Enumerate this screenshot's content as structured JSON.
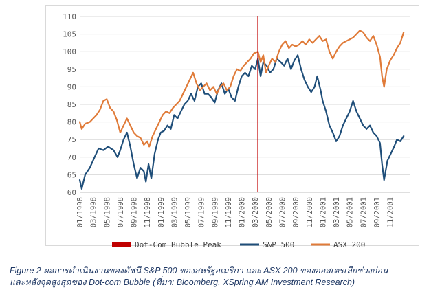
{
  "chart_data": {
    "type": "line",
    "title": "",
    "xlabel": "",
    "ylabel": "",
    "ylim": [
      60,
      110
    ],
    "yticks": [
      60,
      65,
      70,
      75,
      80,
      85,
      90,
      95,
      100,
      105,
      110
    ],
    "x_start": "01/1998",
    "x_end": "02/2002",
    "xticks": [
      "01/1998",
      "03/1998",
      "05/1998",
      "07/1998",
      "09/1998",
      "11/1998",
      "01/1999",
      "03/1999",
      "05/1999",
      "07/1999",
      "09/1999",
      "11/1999",
      "01/2000",
      "03/2000",
      "05/2000",
      "07/2000",
      "09/2000",
      "11/2000",
      "01/2001",
      "03/2001",
      "05/2001",
      "07/2001",
      "09/2001",
      "11/2001"
    ],
    "grid": "horizontal",
    "legend_position": "bottom",
    "annotations": [
      {
        "name": "Dot-Com Bubble Peak",
        "type": "vline",
        "x": "03/2000",
        "month_index": 26.4,
        "color": "#c00000"
      }
    ],
    "series": [
      {
        "name": "S&P 500",
        "color": "#1f4e79",
        "points": [
          [
            0,
            63.5
          ],
          [
            0.3,
            61
          ],
          [
            0.8,
            65
          ],
          [
            1.5,
            67
          ],
          [
            2.2,
            70
          ],
          [
            2.8,
            72.5
          ],
          [
            3.5,
            72
          ],
          [
            4.2,
            73
          ],
          [
            5,
            72
          ],
          [
            5.6,
            70
          ],
          [
            6,
            72
          ],
          [
            6.5,
            75
          ],
          [
            7,
            77
          ],
          [
            7.5,
            73
          ],
          [
            8,
            68
          ],
          [
            8.5,
            64
          ],
          [
            9,
            67
          ],
          [
            9.5,
            66
          ],
          [
            9.8,
            63
          ],
          [
            10.2,
            68
          ],
          [
            10.6,
            64
          ],
          [
            11.1,
            71
          ],
          [
            11.6,
            75
          ],
          [
            12,
            77
          ],
          [
            12.5,
            77.5
          ],
          [
            13,
            79
          ],
          [
            13.5,
            78
          ],
          [
            14,
            82
          ],
          [
            14.5,
            81
          ],
          [
            15,
            83
          ],
          [
            15.5,
            85
          ],
          [
            16,
            86
          ],
          [
            16.5,
            88
          ],
          [
            17,
            86
          ],
          [
            17.5,
            90
          ],
          [
            18,
            91
          ],
          [
            18.5,
            88
          ],
          [
            19,
            88
          ],
          [
            19.5,
            87
          ],
          [
            20,
            85.5
          ],
          [
            20.5,
            89
          ],
          [
            21,
            91
          ],
          [
            21.5,
            88
          ],
          [
            22,
            89.5
          ],
          [
            22.5,
            87
          ],
          [
            23,
            86
          ],
          [
            23.5,
            90
          ],
          [
            24,
            93
          ],
          [
            24.5,
            94
          ],
          [
            25,
            93
          ],
          [
            25.5,
            96
          ],
          [
            26,
            95
          ],
          [
            26.4,
            98
          ],
          [
            26.8,
            93
          ],
          [
            27.2,
            97
          ],
          [
            27.7,
            96
          ],
          [
            28.2,
            94
          ],
          [
            28.7,
            95
          ],
          [
            29.2,
            98
          ],
          [
            29.8,
            97
          ],
          [
            30.3,
            96
          ],
          [
            30.8,
            98
          ],
          [
            31.3,
            95
          ],
          [
            31.8,
            97.5
          ],
          [
            32.3,
            99
          ],
          [
            32.8,
            95
          ],
          [
            33.3,
            92
          ],
          [
            33.8,
            90
          ],
          [
            34.3,
            88.5
          ],
          [
            34.8,
            90
          ],
          [
            35.2,
            93
          ],
          [
            35.7,
            89
          ],
          [
            36,
            86
          ],
          [
            36.5,
            83
          ],
          [
            37,
            79
          ],
          [
            37.5,
            77
          ],
          [
            38,
            74.5
          ],
          [
            38.5,
            76
          ],
          [
            39,
            79
          ],
          [
            39.5,
            81
          ],
          [
            40,
            83
          ],
          [
            40.5,
            86
          ],
          [
            41,
            83
          ],
          [
            41.5,
            81
          ],
          [
            42,
            79
          ],
          [
            42.5,
            78
          ],
          [
            43,
            79
          ],
          [
            43.5,
            77
          ],
          [
            44,
            76
          ],
          [
            44.5,
            74
          ],
          [
            44.8,
            68
          ],
          [
            45.1,
            63.5
          ],
          [
            45.6,
            69
          ],
          [
            46.1,
            71
          ],
          [
            46.6,
            73
          ],
          [
            47,
            75
          ],
          [
            47.5,
            74.5
          ],
          [
            48,
            76
          ]
        ]
      },
      {
        "name": "ASX 200",
        "color": "#e07b39",
        "points": [
          [
            0,
            80
          ],
          [
            0.3,
            78
          ],
          [
            0.8,
            79.5
          ],
          [
            1.5,
            80
          ],
          [
            2,
            81
          ],
          [
            2.5,
            82
          ],
          [
            3,
            83.5
          ],
          [
            3.5,
            86
          ],
          [
            4,
            86.5
          ],
          [
            4.5,
            84
          ],
          [
            5,
            83
          ],
          [
            5.5,
            80.5
          ],
          [
            6,
            77
          ],
          [
            6.5,
            79
          ],
          [
            7,
            81
          ],
          [
            7.5,
            79
          ],
          [
            8,
            77
          ],
          [
            8.5,
            76
          ],
          [
            9,
            75.5
          ],
          [
            9.5,
            73.5
          ],
          [
            10,
            74.5
          ],
          [
            10.3,
            73
          ],
          [
            10.8,
            76
          ],
          [
            11.3,
            78
          ],
          [
            11.8,
            80
          ],
          [
            12.3,
            82
          ],
          [
            12.8,
            83
          ],
          [
            13.3,
            82.5
          ],
          [
            13.8,
            84
          ],
          [
            14.3,
            85
          ],
          [
            14.8,
            86
          ],
          [
            15.3,
            88
          ],
          [
            15.8,
            90
          ],
          [
            16.3,
            92
          ],
          [
            16.8,
            94
          ],
          [
            17.3,
            91
          ],
          [
            17.8,
            89
          ],
          [
            18.3,
            90
          ],
          [
            18.8,
            91
          ],
          [
            19.3,
            89
          ],
          [
            19.8,
            90
          ],
          [
            20.3,
            88
          ],
          [
            20.8,
            90
          ],
          [
            21.3,
            91
          ],
          [
            21.8,
            89
          ],
          [
            22.3,
            90
          ],
          [
            22.8,
            93
          ],
          [
            23.3,
            95
          ],
          [
            23.8,
            94.5
          ],
          [
            24.3,
            96
          ],
          [
            24.8,
            97
          ],
          [
            25.3,
            98
          ],
          [
            25.8,
            99.5
          ],
          [
            26.4,
            100
          ],
          [
            26.8,
            97
          ],
          [
            27.2,
            99
          ],
          [
            27.6,
            94
          ],
          [
            28,
            96
          ],
          [
            28.5,
            98
          ],
          [
            29,
            97
          ],
          [
            29.5,
            100
          ],
          [
            30,
            102
          ],
          [
            30.5,
            103
          ],
          [
            31,
            101
          ],
          [
            31.5,
            102
          ],
          [
            32,
            101.5
          ],
          [
            32.5,
            102
          ],
          [
            33,
            103
          ],
          [
            33.5,
            102
          ],
          [
            34,
            103.5
          ],
          [
            34.5,
            102.5
          ],
          [
            35,
            103.5
          ],
          [
            35.5,
            104.5
          ],
          [
            36,
            103
          ],
          [
            36.5,
            103.5
          ],
          [
            37,
            100
          ],
          [
            37.5,
            98
          ],
          [
            38,
            100
          ],
          [
            38.5,
            101.5
          ],
          [
            39,
            102.5
          ],
          [
            39.5,
            103
          ],
          [
            40,
            103.5
          ],
          [
            40.5,
            104
          ],
          [
            41,
            105
          ],
          [
            41.5,
            106
          ],
          [
            42,
            105.5
          ],
          [
            42.5,
            104
          ],
          [
            43,
            103
          ],
          [
            43.5,
            104.5
          ],
          [
            44,
            102
          ],
          [
            44.5,
            98.5
          ],
          [
            44.8,
            93
          ],
          [
            45.1,
            90
          ],
          [
            45.5,
            95
          ],
          [
            46,
            97.5
          ],
          [
            46.5,
            99
          ],
          [
            47,
            101
          ],
          [
            47.5,
            102.5
          ],
          [
            48,
            105.5
          ]
        ]
      }
    ]
  },
  "legend": [
    {
      "label": "Dot-Com Bubble Peak",
      "color": "#c00000",
      "style": "bar"
    },
    {
      "label": "S&P 500",
      "color": "#1f4e79",
      "style": "line"
    },
    {
      "label": "ASX 200",
      "color": "#e07b39",
      "style": "line"
    }
  ],
  "caption": {
    "line1": "Figure 2 ผลการดำเนินงานของดัชนี S&P 500 ของสหรัฐอเมริกา และ ASX 200 ของออสเตรเลียช่วงก่อน",
    "line2": "และหลังจุดสูงสุดของ Dot-com Bubble (ที่มา: Bloomberg, XSpring AM Investment Research)"
  }
}
